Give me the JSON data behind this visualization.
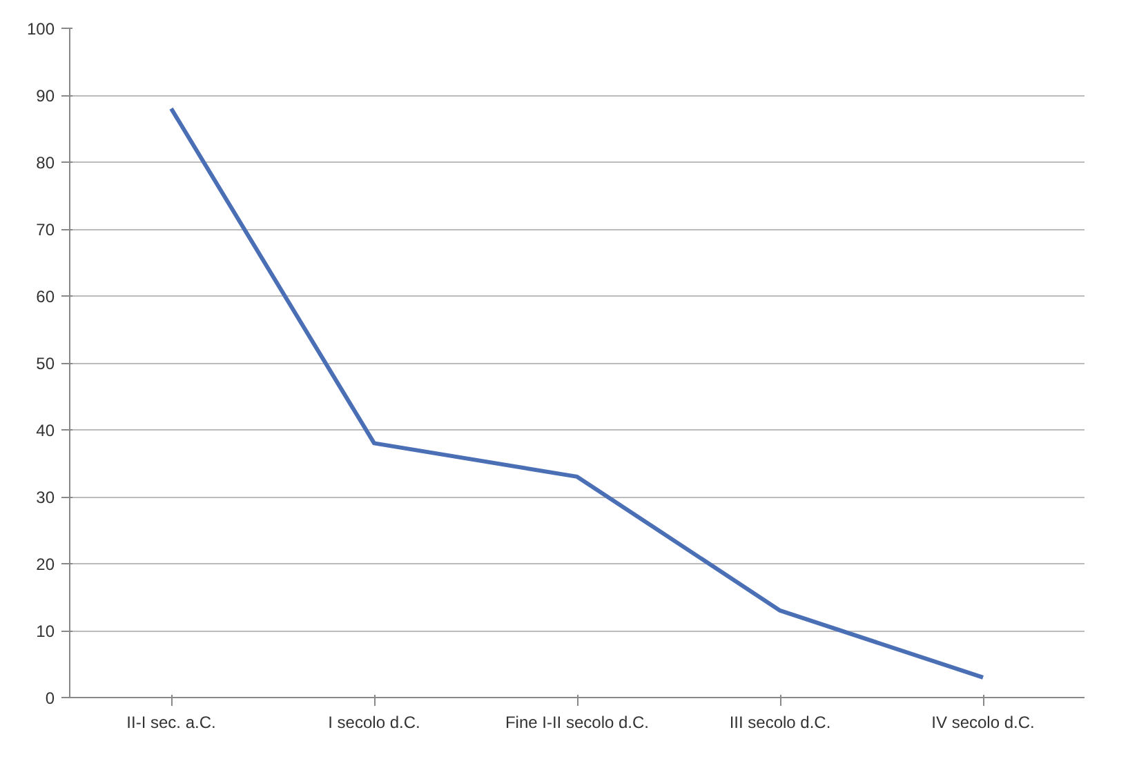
{
  "chart_data": {
    "type": "line",
    "categories": [
      "II-I sec. a.C.",
      "I secolo d.C.",
      "Fine I-II secolo d.C.",
      "III secolo d.C.",
      "IV secolo d.C."
    ],
    "series": [
      {
        "color": "#4a6fb5",
        "values": [
          88,
          38,
          33,
          13,
          3
        ]
      }
    ],
    "ylim": [
      0,
      100
    ],
    "yticks": [
      0,
      10,
      20,
      30,
      40,
      50,
      60,
      70,
      80,
      90,
      100
    ],
    "grid": "y",
    "marker": "none",
    "line_style": "solid"
  }
}
